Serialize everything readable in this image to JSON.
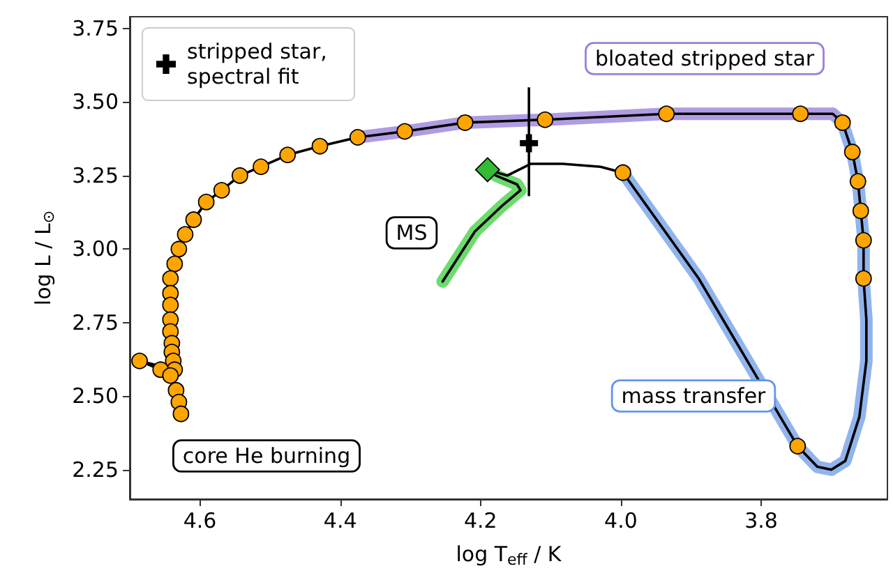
{
  "chart_data": {
    "type": "line",
    "xlabel": "log T$_{eff}$ / K",
    "ylabel": "log L / L$_{⊙}$",
    "xlim": [
      4.7,
      3.62
    ],
    "xticks": [
      4.6,
      4.4,
      4.2,
      {
        "value": 4.0,
        "label": "4.0"
      },
      3.8
    ],
    "ylim": [
      2.15,
      3.79
    ],
    "yticks": [
      2.25,
      {
        "value": 2.5,
        "label": "2.50"
      },
      2.75,
      {
        "value": 3.0,
        "label": "3.00"
      },
      3.25,
      {
        "value": 3.5,
        "label": "3.50"
      },
      3.75
    ],
    "grid": false,
    "legend": "top left",
    "annotations": [
      "MS",
      "bloated stripped star",
      "mass transfer",
      "core He burning"
    ],
    "series": [
      {
        "marker": "none",
        "color": "#6ddb6d",
        "x": [
          4.254,
          4.208,
          4.168,
          4.143,
          4.148,
          4.178,
          4.19
        ],
        "values": [
          2.89,
          3.06,
          3.15,
          3.2,
          3.22,
          3.25,
          3.27
        ]
      },
      {
        "marker": "none",
        "color": "#92b4ec",
        "x": [
          3.997,
          3.889,
          3.748,
          3.72,
          3.7,
          3.68,
          3.66,
          3.65,
          3.65,
          3.654,
          3.654,
          3.658,
          3.662,
          3.67,
          3.684,
          3.698
        ],
        "values": [
          3.26,
          2.9,
          2.33,
          2.26,
          2.25,
          2.28,
          2.43,
          2.62,
          2.76,
          2.9,
          3.03,
          3.13,
          3.23,
          3.33,
          3.43,
          3.46
        ]
      },
      {
        "marker": "none",
        "color": "#b09ce2",
        "x": [
          3.698,
          3.744,
          3.935,
          4.108,
          4.222,
          4.308,
          4.375
        ],
        "values": [
          3.46,
          3.46,
          3.46,
          3.44,
          3.43,
          3.4,
          3.38
        ]
      },
      {
        "marker": "none",
        "color": "#000000",
        "x": [
          4.254,
          4.208,
          4.168,
          4.143,
          4.148,
          4.178,
          4.19,
          4.162,
          4.128,
          4.083,
          4.029,
          3.997,
          3.889,
          3.748,
          3.72,
          3.7,
          3.68,
          3.66,
          3.65,
          3.65,
          3.654,
          3.654,
          3.658,
          3.662,
          3.67,
          3.684,
          3.698,
          3.744,
          3.935,
          4.108,
          4.222,
          4.308,
          4.375,
          4.429,
          4.475,
          4.513,
          4.543,
          4.569,
          4.591,
          4.609,
          4.621,
          4.63,
          4.636,
          4.642,
          4.642,
          4.642,
          4.642,
          4.642,
          4.64,
          4.64,
          4.638,
          4.636,
          4.686,
          4.656,
          4.642,
          4.634,
          4.63,
          4.627
        ],
        "values": [
          2.89,
          3.06,
          3.15,
          3.2,
          3.22,
          3.25,
          3.27,
          3.25,
          3.29,
          3.29,
          3.28,
          3.26,
          2.9,
          2.33,
          2.26,
          2.25,
          2.28,
          2.43,
          2.62,
          2.76,
          2.9,
          3.03,
          3.13,
          3.23,
          3.33,
          3.43,
          3.46,
          3.46,
          3.46,
          3.44,
          3.43,
          3.4,
          3.38,
          3.35,
          3.32,
          3.28,
          3.25,
          3.2,
          3.16,
          3.1,
          3.05,
          3.0,
          2.95,
          2.9,
          2.85,
          2.81,
          2.76,
          2.72,
          2.68,
          2.65,
          2.62,
          2.59,
          2.62,
          2.59,
          2.57,
          2.52,
          2.48,
          2.44
        ]
      },
      {
        "type": "scatter",
        "marker": "circle",
        "color": "#ffa500",
        "x": [
          3.997,
          3.748,
          3.654,
          3.654,
          3.658,
          3.662,
          3.67,
          3.684,
          3.744,
          3.935,
          4.108,
          4.222,
          4.308,
          4.375,
          4.429,
          4.475,
          4.513,
          4.543,
          4.569,
          4.591,
          4.609,
          4.621,
          4.63,
          4.636,
          4.642,
          4.642,
          4.642,
          4.642,
          4.642,
          4.64,
          4.64,
          4.638,
          4.636,
          4.686,
          4.656,
          4.642,
          4.634,
          4.63,
          4.627
        ],
        "values": [
          3.26,
          2.33,
          2.9,
          3.03,
          3.13,
          3.23,
          3.33,
          3.43,
          3.46,
          3.46,
          3.44,
          3.43,
          3.4,
          3.38,
          3.35,
          3.32,
          3.28,
          3.25,
          3.2,
          3.16,
          3.1,
          3.05,
          3.0,
          2.95,
          2.9,
          2.85,
          2.81,
          2.76,
          2.72,
          2.68,
          2.65,
          2.62,
          2.59,
          2.62,
          2.59,
          2.57,
          2.52,
          2.48,
          2.44
        ]
      },
      {
        "type": "scatter",
        "marker": "diamond",
        "color": "#33bb33",
        "x": [
          4.19
        ],
        "values": [
          3.27
        ]
      },
      {
        "type": "scatter",
        "marker": "cross",
        "name": "stripped star, spectral fit",
        "color": "#000000",
        "x": [
          4.131
        ],
        "values": [
          3.36
        ],
        "errors": [
          [
            3.18,
            3.55
          ]
        ]
      }
    ]
  }
}
